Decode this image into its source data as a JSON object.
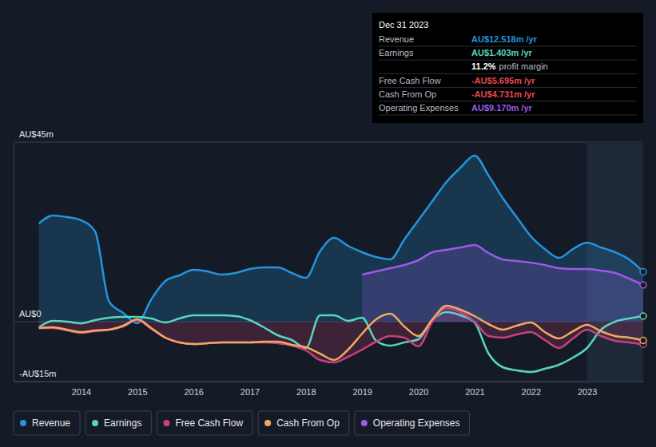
{
  "chart_data": {
    "type": "line",
    "x": [
      2013.25,
      2013.5,
      2013.75,
      2014,
      2014.25,
      2014.5,
      2014.75,
      2015,
      2015.25,
      2015.5,
      2015.75,
      2016,
      2016.25,
      2016.5,
      2016.75,
      2017,
      2017.25,
      2017.5,
      2017.75,
      2018,
      2018.25,
      2018.5,
      2018.75,
      2019,
      2019.25,
      2019.5,
      2019.75,
      2020,
      2020.25,
      2020.5,
      2020.75,
      2021,
      2021.25,
      2021.5,
      2021.75,
      2022,
      2022.25,
      2022.5,
      2022.75,
      2023,
      2023.25,
      2023.5,
      2023.75,
      2024
    ],
    "xlim": [
      2012.8,
      2024
    ],
    "xticks": [
      2014,
      2015,
      2016,
      2017,
      2018,
      2019,
      2020,
      2021,
      2022,
      2023
    ],
    "ylim": [
      -15,
      45
    ],
    "yticks": [
      {
        "value": 45,
        "label": "AU$45m"
      },
      {
        "value": 0,
        "label": "AU$0"
      },
      {
        "value": -15,
        "label": "-AU$15m"
      }
    ],
    "grid": true,
    "legend": "bottom",
    "shaded_region": [
      2023,
      2024
    ],
    "series": [
      {
        "name": "Revenue",
        "color": "#2394df",
        "type": "area",
        "values": [
          24.6,
          26.6,
          26.2,
          25.4,
          22.6,
          5,
          2.2,
          -0.4,
          5.6,
          10.2,
          11.6,
          13,
          12.6,
          11.8,
          12.2,
          13.2,
          13.6,
          13.6,
          12.2,
          11,
          17.6,
          21,
          19,
          17.4,
          16.2,
          15.6,
          20.6,
          25.4,
          30.2,
          35,
          38.6,
          41.6,
          36.6,
          31,
          26.2,
          21.4,
          18.2,
          16,
          18.2,
          19.8,
          18.6,
          17.4,
          15.6,
          12.5
        ]
      },
      {
        "name": "Earnings",
        "color": "#58d5bf",
        "type": "line",
        "values": [
          -1.4,
          0.2,
          0,
          -0.4,
          0.4,
          1,
          1.2,
          1.2,
          0.8,
          -0.2,
          0.8,
          1.6,
          1.6,
          1.6,
          1.4,
          0.4,
          -1.4,
          -3.4,
          -4.6,
          -6.6,
          1.6,
          1.6,
          0.2,
          1,
          -4.8,
          -6,
          -5.2,
          -4.4,
          0.4,
          2.4,
          1.6,
          -0.2,
          -8,
          -11.4,
          -12.2,
          -12.6,
          -11.8,
          -10.8,
          -9,
          -6.6,
          -2,
          0,
          0.8,
          1.4
        ]
      },
      {
        "name": "Free Cash Flow",
        "color": "#c9407c",
        "type": "area",
        "values": [
          -1.6,
          -1.6,
          -2.2,
          -2.8,
          -2.4,
          -2,
          -1.2,
          0.4,
          -1.8,
          -4,
          -5.2,
          -5.6,
          -5.4,
          -5.2,
          -5.2,
          -5.2,
          -5.2,
          -5.4,
          -6,
          -7.2,
          -9.6,
          -10.2,
          -8.8,
          -7,
          -5,
          -3.6,
          -4,
          -6.2,
          0,
          3.4,
          2.4,
          0,
          -3.6,
          -4,
          -3.2,
          -2.6,
          -4.6,
          -6.6,
          -4.2,
          -2,
          -3.6,
          -4.8,
          -5.2,
          -5.7
        ]
      },
      {
        "name": "Cash From Op",
        "color": "#eeaa62",
        "type": "line",
        "values": [
          -1.6,
          -1.4,
          -2,
          -2.6,
          -2.2,
          -2,
          -1,
          0.6,
          -1.6,
          -4,
          -5.2,
          -5.6,
          -5.4,
          -5.2,
          -5.2,
          -5.2,
          -5,
          -5,
          -5.8,
          -6.4,
          -8,
          -9.6,
          -7,
          -3,
          0.6,
          2,
          -1.2,
          -3.6,
          0.6,
          4,
          3,
          1.4,
          -0.6,
          -2,
          -1,
          -0.2,
          -2.6,
          -4.2,
          -2.4,
          -0.8,
          -2.4,
          -3.6,
          -4,
          -4.7
        ]
      },
      {
        "name": "Operating Expenses",
        "color": "#9b5ae8",
        "type": "area",
        "values": [
          null,
          null,
          null,
          null,
          null,
          null,
          null,
          null,
          null,
          null,
          null,
          null,
          null,
          null,
          null,
          null,
          null,
          null,
          null,
          null,
          null,
          null,
          null,
          11.8,
          12.6,
          13.4,
          14.2,
          15.4,
          17.4,
          18,
          18.6,
          19.2,
          17.2,
          15.6,
          15.2,
          14.8,
          14.2,
          13.4,
          13.2,
          13.2,
          12.8,
          12.2,
          10.8,
          9.2
        ]
      }
    ],
    "annotation": {
      "title": "Dec 31 2023",
      "rows": [
        {
          "label": "Revenue",
          "text": "AU$12.518m /yr",
          "color": "#2394df"
        },
        {
          "label": "Earnings",
          "text": "AU$1.403m /yr",
          "color": "#58d5bf"
        },
        {
          "text": "11.2%",
          "note": "profit margin",
          "color": "#ffffff"
        },
        {
          "label": "Free Cash Flow",
          "text": "-AU$5.695m /yr",
          "color": "#e5484d"
        },
        {
          "label": "Cash From Op",
          "text": "-AU$4.731m /yr",
          "color": "#e5484d"
        },
        {
          "label": "Operating Expenses",
          "text": "AU$9.170m /yr",
          "color": "#9b5ae8"
        }
      ]
    }
  }
}
